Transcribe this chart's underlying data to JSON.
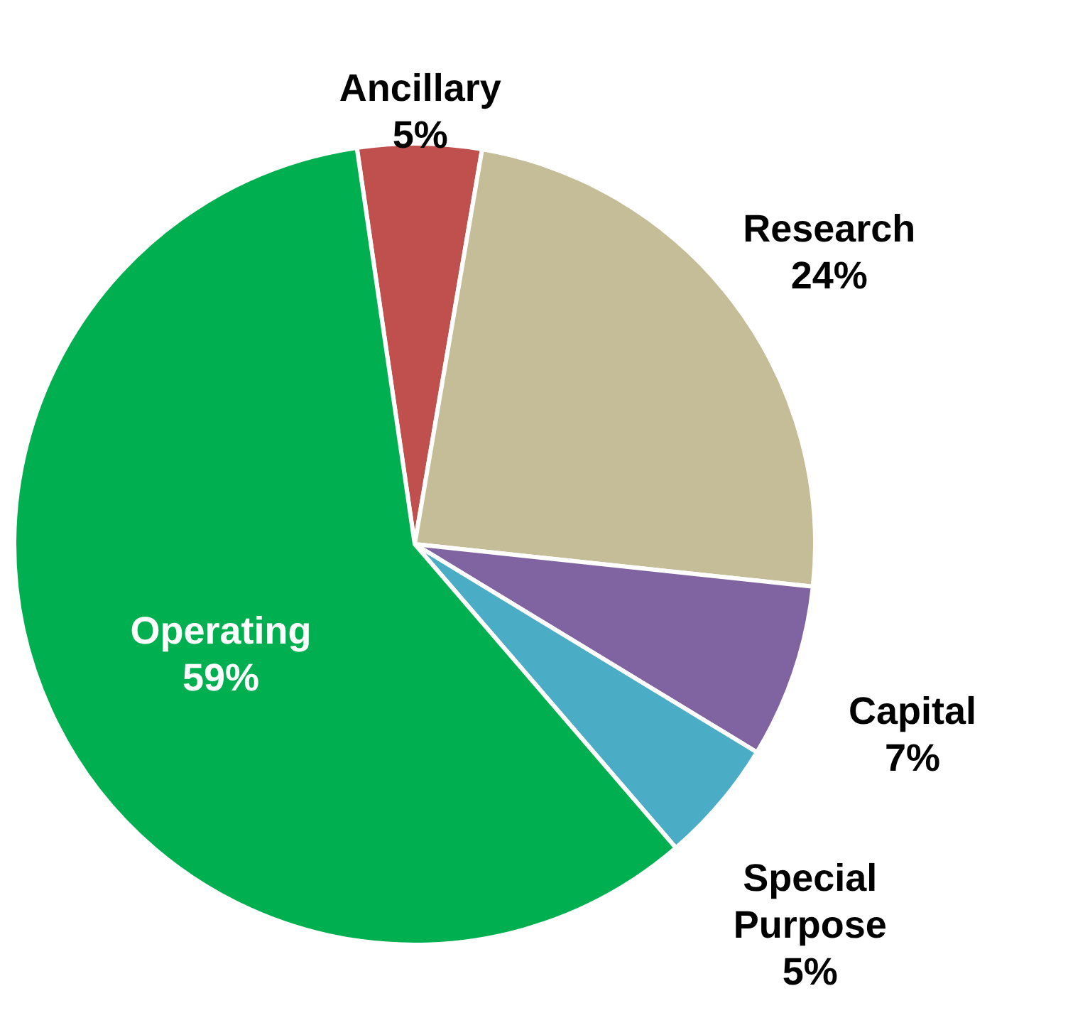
{
  "chart_data": {
    "type": "pie",
    "categories": [
      "Ancillary",
      "Research",
      "Capital",
      "Special Purpose",
      "Operating"
    ],
    "values": [
      5,
      24,
      7,
      5,
      59
    ],
    "value_labels": [
      "5%",
      "24%",
      "7%",
      "5%",
      "59%"
    ],
    "colors": [
      "#c0504d",
      "#c4bd97",
      "#8064a2",
      "#4bacc6",
      "#00b050"
    ]
  }
}
